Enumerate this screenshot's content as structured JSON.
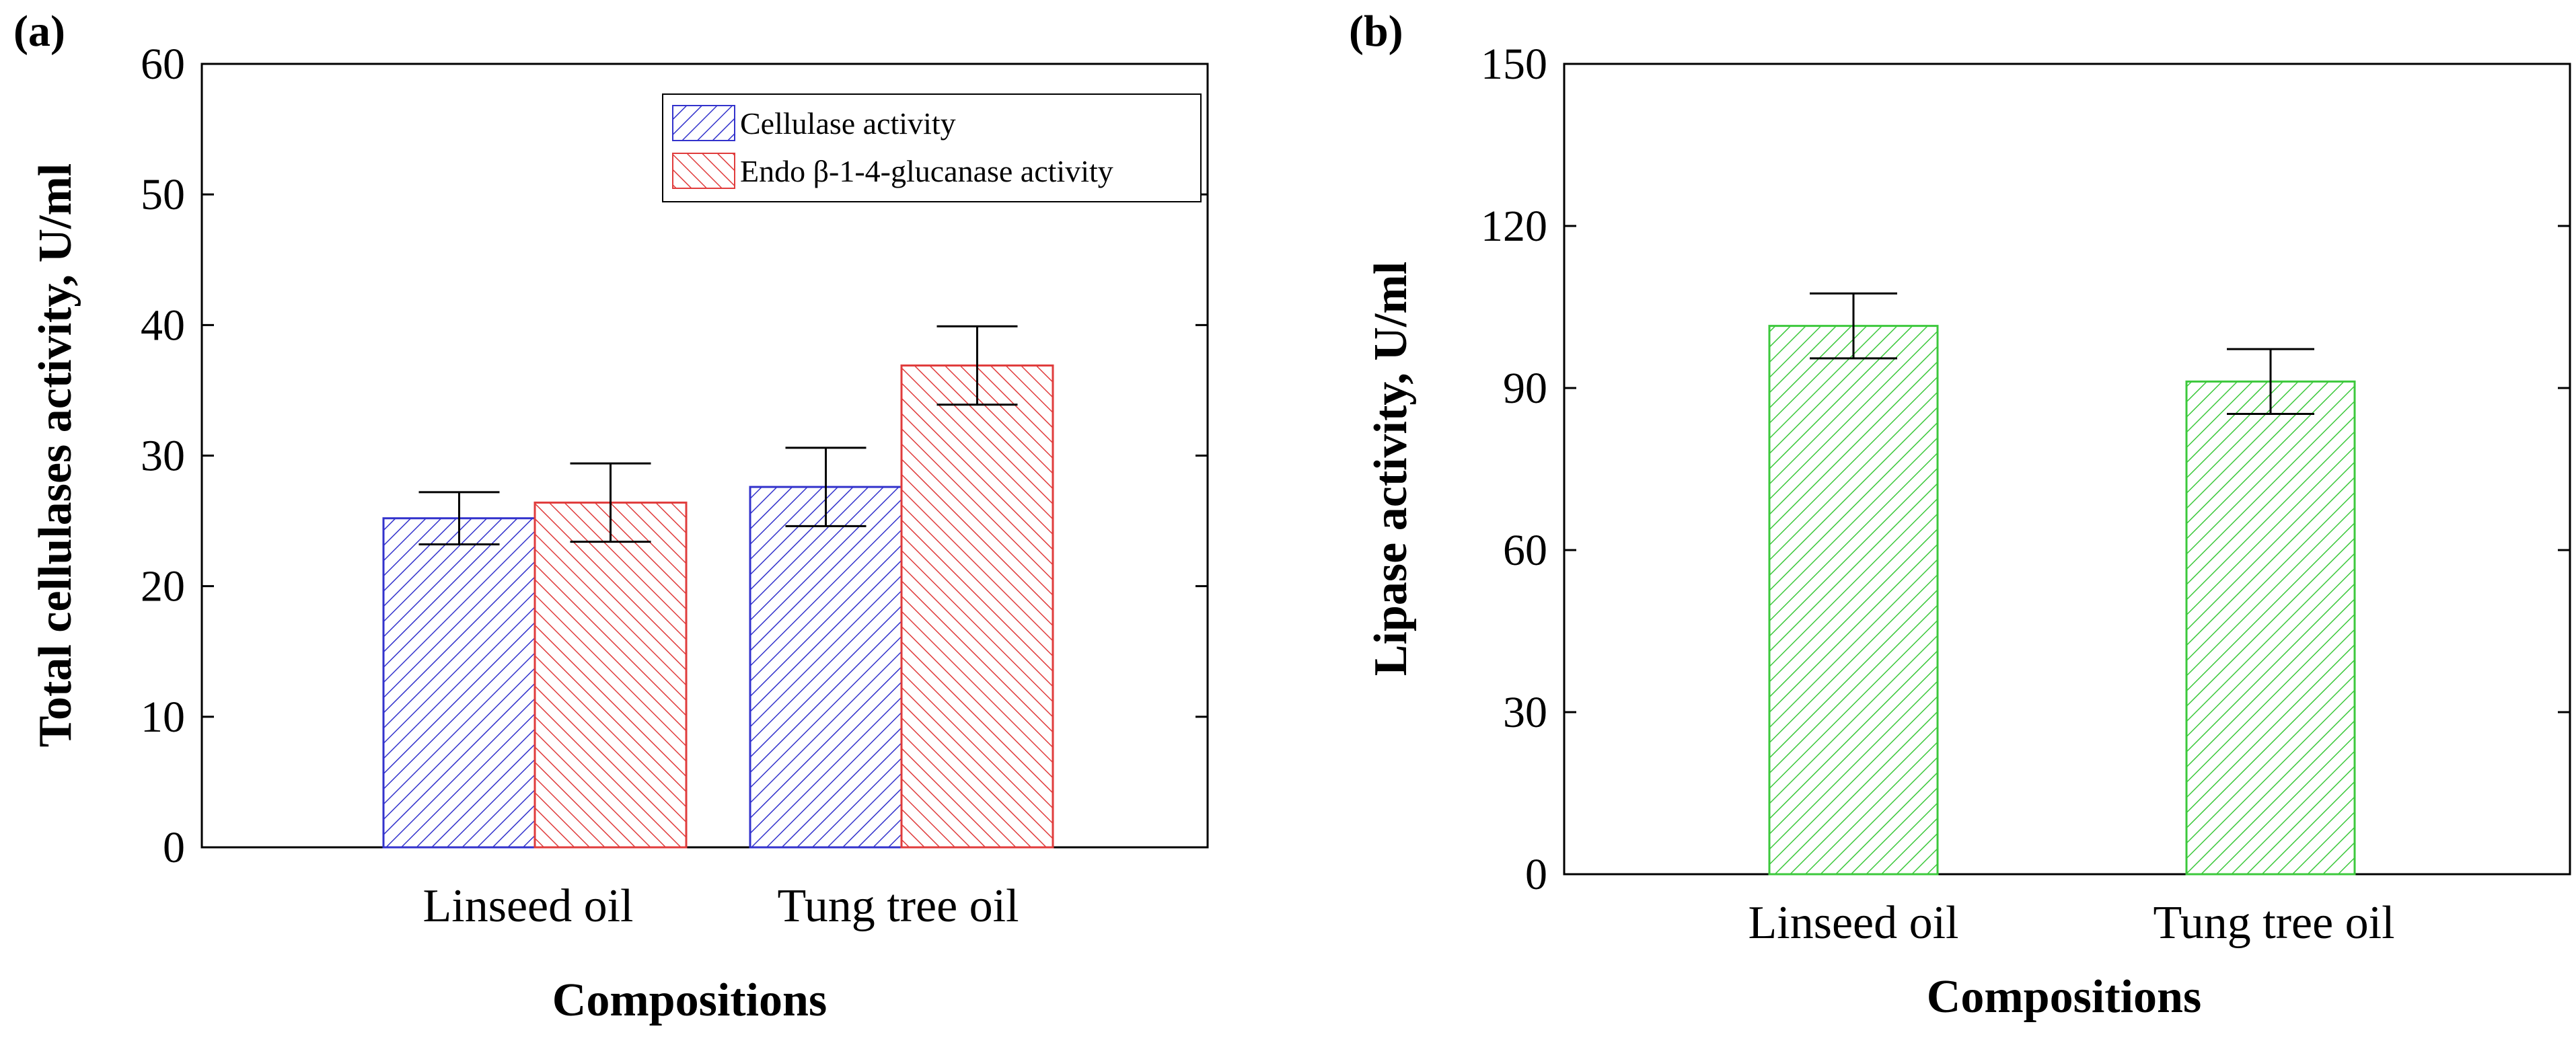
{
  "chart_data": [
    {
      "panel": "(a)",
      "type": "bar",
      "categories": [
        "Linseed oil",
        "Tung tree oil"
      ],
      "series": [
        {
          "name": "Cellulase activity",
          "color": "#3333cc",
          "values": [
            25.2,
            27.6
          ],
          "errors": [
            2.0,
            3.0
          ]
        },
        {
          "name": "Endo β-1-4-glucanase activity",
          "color": "#e03c3c",
          "values": [
            26.4,
            36.9
          ],
          "errors": [
            3.0,
            3.0
          ]
        }
      ],
      "ylabel": "Total cellulases activity, U/ml",
      "xlabel": "Compositions",
      "ylim": [
        0,
        60
      ],
      "yticks": [
        "0",
        "10",
        "20",
        "30",
        "40",
        "50",
        "60"
      ],
      "legend_position": "top-right"
    },
    {
      "panel": "(b)",
      "type": "bar",
      "categories": [
        "Linseed oil",
        "Tung tree oil"
      ],
      "series": [
        {
          "name": "Lipase activity",
          "color": "#3cc83c",
          "values": [
            101.5,
            91.2
          ],
          "errors": [
            6.0,
            6.0
          ]
        }
      ],
      "ylabel": "Lipase activity, U/ml",
      "xlabel": "Compositions",
      "ylim": [
        0,
        150
      ],
      "yticks": [
        "0",
        "30",
        "60",
        "90",
        "120",
        "150"
      ]
    }
  ]
}
